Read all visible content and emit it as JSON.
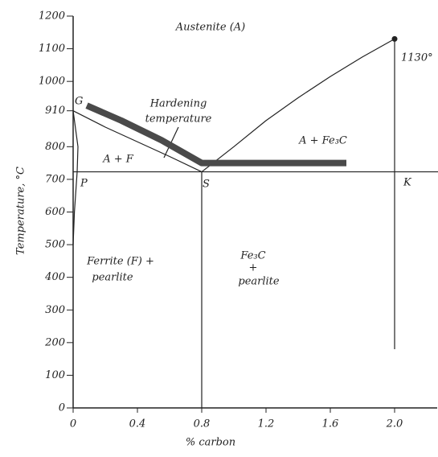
{
  "chart_data": {
    "type": "phase",
    "xlabel": "% carbon",
    "ylabel": "Temperature, °C",
    "xlim": [
      0,
      2.27
    ],
    "ylim": [
      0,
      1200
    ],
    "xticks": [
      0,
      0.4,
      0.8,
      1.2,
      1.6,
      {
        "value": 2,
        "label": "2.0"
      }
    ],
    "yticks": [
      0,
      100,
      200,
      300,
      400,
      500,
      600,
      700,
      800,
      910,
      1000,
      1100,
      1200
    ],
    "color": "#222222",
    "lines": [
      {
        "x": [
          0,
          0.2,
          0.4,
          0.6,
          0.8
        ],
        "values": [
          910,
          860,
          815,
          770,
          723
        ]
      },
      {
        "x": [
          0.8,
          1.0,
          1.2,
          1.4,
          1.6,
          1.8,
          2.0
        ],
        "values": [
          723,
          800,
          880,
          950,
          1015,
          1075,
          1130
        ]
      },
      {
        "x": [
          0,
          2.27
        ],
        "values": [
          723,
          723
        ]
      },
      {
        "x": [
          0,
          0.03,
          0.025,
          0.008,
          0
        ],
        "values": [
          910,
          800,
          723,
          600,
          500
        ]
      },
      {
        "x": [
          0.8,
          0.8
        ],
        "values": [
          723,
          0
        ]
      },
      {
        "x": [
          2.0,
          2.0
        ],
        "values": [
          1130,
          180
        ]
      }
    ],
    "hardening_band": {
      "x": [
        0.085,
        0.3,
        0.55,
        0.8,
        0.8,
        1.7
      ],
      "values": [
        926,
        880,
        820,
        750,
        750,
        750
      ],
      "color": "#4a4a4a"
    },
    "points": {
      "x": [
        2.0
      ],
      "values": [
        1130
      ]
    },
    "annotations": [
      "Austenite (A)",
      "Hardening",
      "temperature",
      "A + F",
      "A + Fe₃C",
      "Ferrite (F) +",
      "pearlite",
      "Fe₃C",
      "+",
      "pearlite",
      "G",
      "P",
      "S",
      "K",
      "1130°"
    ]
  }
}
